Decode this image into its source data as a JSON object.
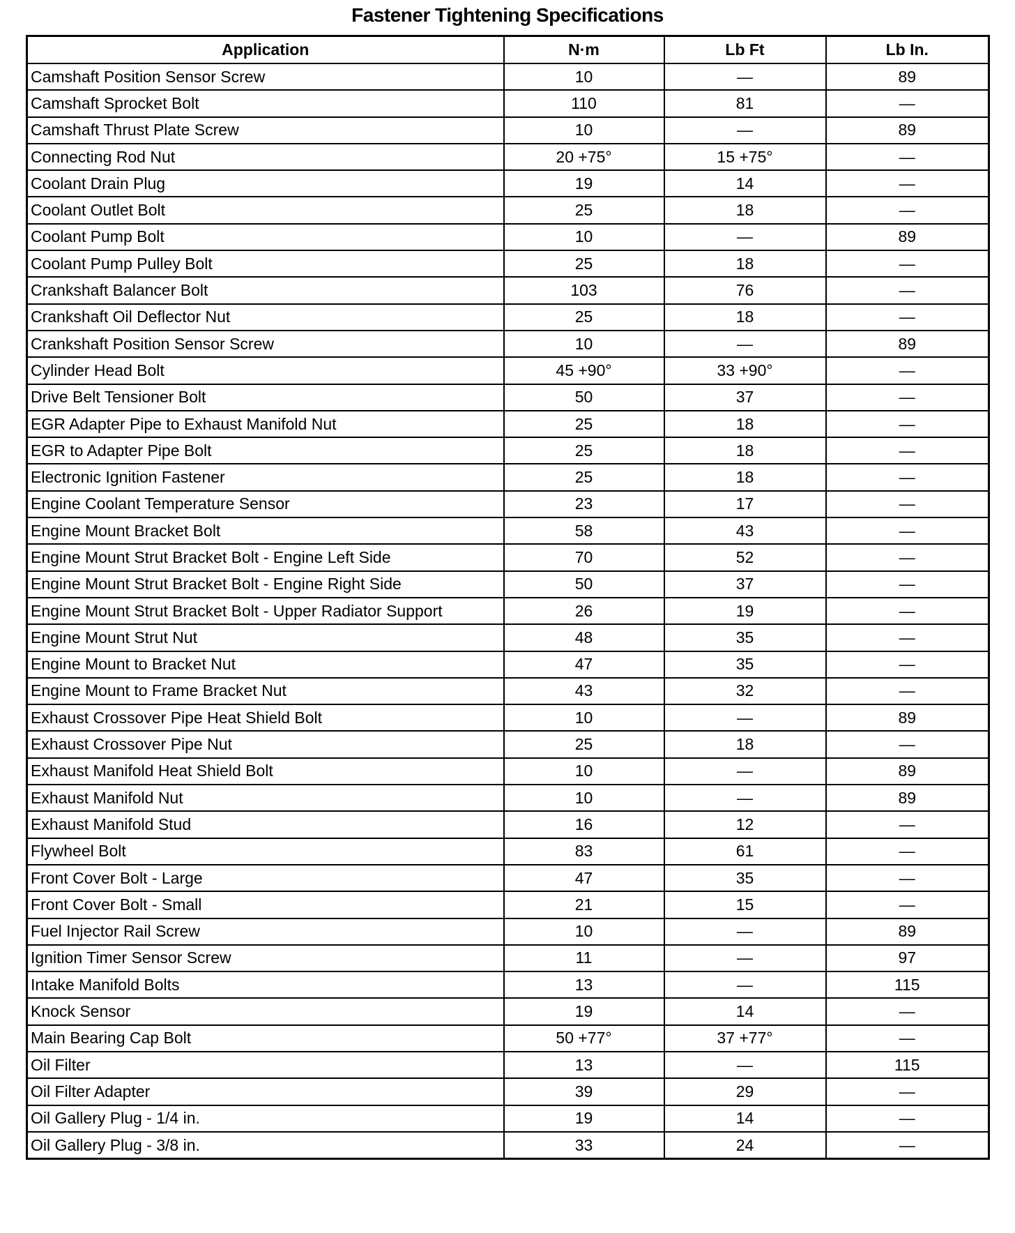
{
  "title": "Fastener Tightening Specifications",
  "table": {
    "headers": [
      "Application",
      "N·m",
      "Lb Ft",
      "Lb In."
    ],
    "rows": [
      [
        "Camshaft Position Sensor Screw",
        "10",
        "—",
        "89"
      ],
      [
        "Camshaft Sprocket Bolt",
        "110",
        "81",
        "—"
      ],
      [
        "Camshaft Thrust Plate Screw",
        "10",
        "—",
        "89"
      ],
      [
        "Connecting Rod Nut",
        "20 +75°",
        "15 +75°",
        "—"
      ],
      [
        "Coolant Drain Plug",
        "19",
        "14",
        "—"
      ],
      [
        "Coolant Outlet Bolt",
        "25",
        "18",
        "—"
      ],
      [
        "Coolant Pump Bolt",
        "10",
        "—",
        "89"
      ],
      [
        "Coolant Pump Pulley Bolt",
        "25",
        "18",
        "—"
      ],
      [
        "Crankshaft Balancer Bolt",
        "103",
        "76",
        "—"
      ],
      [
        "Crankshaft Oil Deflector Nut",
        "25",
        "18",
        "—"
      ],
      [
        "Crankshaft Position Sensor Screw",
        "10",
        "—",
        "89"
      ],
      [
        "Cylinder Head Bolt",
        "45 +90°",
        "33 +90°",
        "—"
      ],
      [
        "Drive Belt Tensioner Bolt",
        "50",
        "37",
        "—"
      ],
      [
        "EGR Adapter Pipe to Exhaust Manifold Nut",
        "25",
        "18",
        "—"
      ],
      [
        "EGR to Adapter Pipe Bolt",
        "25",
        "18",
        "—"
      ],
      [
        "Electronic Ignition Fastener",
        "25",
        "18",
        "—"
      ],
      [
        "Engine Coolant Temperature Sensor",
        "23",
        "17",
        "—"
      ],
      [
        "Engine Mount Bracket Bolt",
        "58",
        "43",
        "—"
      ],
      [
        "Engine Mount Strut Bracket Bolt - Engine Left Side",
        "70",
        "52",
        "—"
      ],
      [
        "Engine Mount Strut Bracket Bolt - Engine Right Side",
        "50",
        "37",
        "—"
      ],
      [
        "Engine Mount Strut Bracket Bolt - Upper Radiator Support",
        "26",
        "19",
        "—"
      ],
      [
        "Engine Mount Strut Nut",
        "48",
        "35",
        "—"
      ],
      [
        "Engine Mount to Bracket Nut",
        "47",
        "35",
        "—"
      ],
      [
        "Engine Mount to Frame Bracket Nut",
        "43",
        "32",
        "—"
      ],
      [
        "Exhaust Crossover Pipe Heat Shield Bolt",
        "10",
        "—",
        "89"
      ],
      [
        "Exhaust Crossover Pipe Nut",
        "25",
        "18",
        "—"
      ],
      [
        "Exhaust Manifold Heat Shield Bolt",
        "10",
        "—",
        "89"
      ],
      [
        "Exhaust Manifold Nut",
        "10",
        "—",
        "89"
      ],
      [
        "Exhaust Manifold Stud",
        "16",
        "12",
        "—"
      ],
      [
        "Flywheel Bolt",
        "83",
        "61",
        "—"
      ],
      [
        "Front Cover Bolt - Large",
        "47",
        "35",
        "—"
      ],
      [
        "Front Cover Bolt - Small",
        "21",
        "15",
        "—"
      ],
      [
        "Fuel Injector Rail Screw",
        "10",
        "—",
        "89"
      ],
      [
        "Ignition Timer Sensor Screw",
        "11",
        "—",
        "97"
      ],
      [
        "Intake Manifold Bolts",
        "13",
        "—",
        "115"
      ],
      [
        "Knock Sensor",
        "19",
        "14",
        "—"
      ],
      [
        "Main Bearing Cap Bolt",
        "50 +77°",
        "37 +77°",
        "—"
      ],
      [
        "Oil Filter",
        "13",
        "—",
        "115"
      ],
      [
        "Oil Filter Adapter",
        "39",
        "29",
        "—"
      ],
      [
        "Oil Gallery Plug - 1/4 in.",
        "19",
        "14",
        "—"
      ],
      [
        "Oil Gallery Plug - 3/8 in.",
        "33",
        "24",
        "—"
      ]
    ]
  }
}
